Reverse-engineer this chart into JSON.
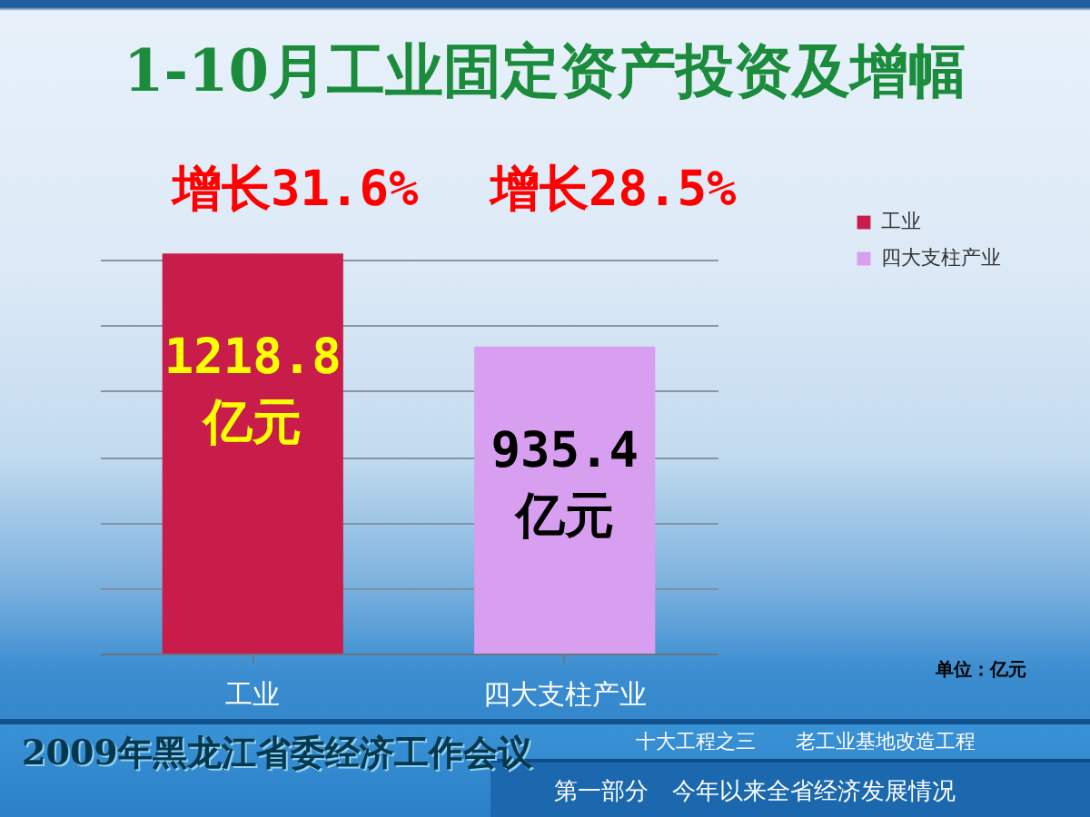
{
  "chart_data": {
    "type": "bar",
    "title": "1-10月工业固定资产投资及增幅",
    "categories": [
      "工业",
      "四大支柱产业"
    ],
    "series": [
      {
        "name": "工业",
        "color": "#c81d4b",
        "values": [
          1218.8,
          null
        ],
        "value_labels": [
          "1218.8 亿元",
          null
        ]
      },
      {
        "name": "四大支柱产业",
        "color": "#d89ef0",
        "values": [
          null,
          935.4
        ],
        "value_labels": [
          null,
          "935.4 亿元"
        ]
      }
    ],
    "grid": "y",
    "legend": "top right",
    "tick_labels": "x",
    "annotations": [
      "增长31.6%",
      "增长28.5%",
      "单位：亿元",
      "2009年黑龙江省委经济工作会议",
      "十大工程之三　　老工业基地改造工程",
      "第一部分　今年以来全省经济发展情况"
    ]
  }
}
